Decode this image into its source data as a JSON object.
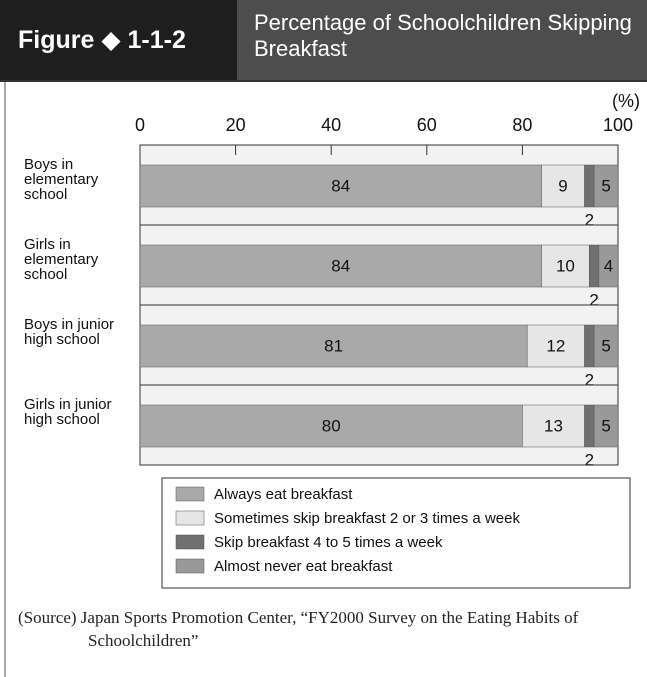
{
  "chart_data": {
    "type": "stacked_barh",
    "figure_label": "Figure ◆ 1-1-2",
    "title": "Percentage of Schoolchildren Skipping Breakfast",
    "unit_label": "(%)",
    "categories": [
      "Boys in elementary school",
      "Girls in elementary school",
      "Boys in junior high school",
      "Girls in junior high school"
    ],
    "series": [
      {
        "name": "Always eat breakfast",
        "color": "#a9a9a9",
        "values": [
          84,
          84,
          81,
          80
        ]
      },
      {
        "name": "Sometimes skip breakfast 2 or 3 times a week",
        "color": "#e6e6e6",
        "values": [
          9,
          10,
          12,
          13
        ]
      },
      {
        "name": "Skip breakfast 4 to 5 times a week",
        "color": "#707070",
        "values": [
          2,
          2,
          2,
          2
        ]
      },
      {
        "name": "Almost never eat breakfast",
        "color": "#999999",
        "values": [
          5,
          4,
          5,
          5
        ]
      }
    ],
    "xlim": [
      0,
      100
    ],
    "xticks": [
      0,
      20,
      40,
      60,
      80,
      100
    ],
    "source": "(Source) Japan Sports Promotion Center, “FY2000 Survey on the Eating Habits of Schoolchildren”"
  }
}
